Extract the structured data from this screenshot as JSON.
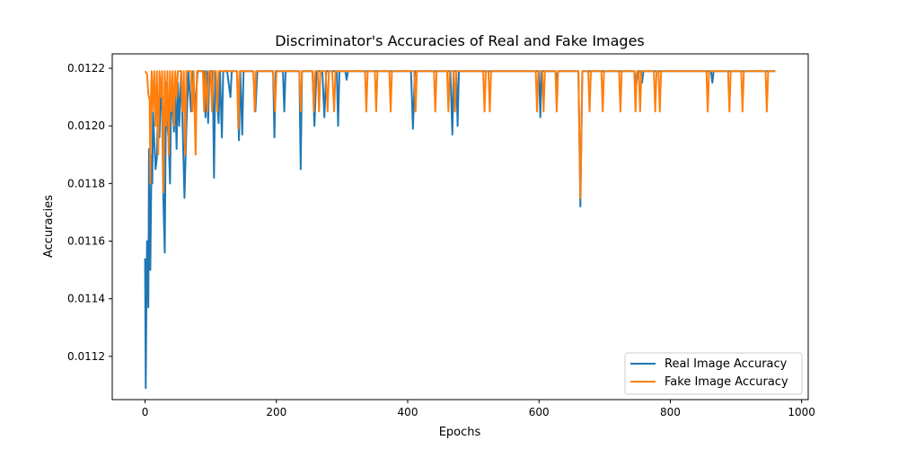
{
  "chart_data": {
    "type": "line",
    "title": "Discriminator's Accuracies of Real and Fake Images",
    "xlabel": "Epochs",
    "ylabel": "Accuracies",
    "xlim": [
      -50,
      1010
    ],
    "ylim": [
      0.01105,
      0.01225
    ],
    "xticks": [
      0,
      200,
      400,
      600,
      800,
      1000
    ],
    "yticks": [
      0.0112,
      0.0114,
      0.0116,
      0.0118,
      0.012,
      0.0122
    ],
    "ytick_labels": [
      "0.0112",
      "0.0114",
      "0.0116",
      "0.0118",
      "0.0120",
      "0.0122"
    ],
    "legend_position": "lower-right",
    "grid": false,
    "series": [
      {
        "name": "Real Image Accuracy",
        "color": "#1f77b4",
        "points": [
          [
            0,
            0.01154
          ],
          [
            1,
            0.01109
          ],
          [
            2,
            0.01138
          ],
          [
            3,
            0.0116
          ],
          [
            4,
            0.0115
          ],
          [
            5,
            0.01137
          ],
          [
            6,
            0.01192
          ],
          [
            7,
            0.0116
          ],
          [
            8,
            0.0115
          ],
          [
            9,
            0.01172
          ],
          [
            10,
            0.0119
          ],
          [
            11,
            0.0118
          ],
          [
            12,
            0.01205
          ],
          [
            14,
            0.01195
          ],
          [
            16,
            0.01185
          ],
          [
            18,
            0.01189
          ],
          [
            20,
            0.0121
          ],
          [
            22,
            0.01196
          ],
          [
            24,
            0.01215
          ],
          [
            26,
            0.01205
          ],
          [
            28,
            0.01173
          ],
          [
            30,
            0.01156
          ],
          [
            32,
            0.01215
          ],
          [
            34,
            0.012
          ],
          [
            36,
            0.01195
          ],
          [
            38,
            0.0118
          ],
          [
            40,
            0.01215
          ],
          [
            42,
            0.01205
          ],
          [
            44,
            0.01198
          ],
          [
            46,
            0.01212
          ],
          [
            48,
            0.01192
          ],
          [
            50,
            0.01215
          ],
          [
            52,
            0.012
          ],
          [
            55,
            0.01219
          ],
          [
            58,
            0.01193
          ],
          [
            60,
            0.01175
          ],
          [
            63,
            0.012
          ],
          [
            66,
            0.01219
          ],
          [
            70,
            0.01205
          ],
          [
            73,
            0.01219
          ],
          [
            76,
            0.01205
          ],
          [
            80,
            0.01219
          ],
          [
            85,
            0.01219
          ],
          [
            90,
            0.01219
          ],
          [
            92,
            0.01203
          ],
          [
            94,
            0.01219
          ],
          [
            96,
            0.01201
          ],
          [
            98,
            0.01219
          ],
          [
            103,
            0.01219
          ],
          [
            105,
            0.01182
          ],
          [
            107,
            0.01219
          ],
          [
            112,
            0.01201
          ],
          [
            114,
            0.01219
          ],
          [
            117,
            0.01196
          ],
          [
            119,
            0.01219
          ],
          [
            125,
            0.01219
          ],
          [
            130,
            0.0121
          ],
          [
            132,
            0.01219
          ],
          [
            140,
            0.01219
          ],
          [
            143,
            0.01195
          ],
          [
            145,
            0.01219
          ],
          [
            148,
            0.01197
          ],
          [
            150,
            0.01219
          ],
          [
            165,
            0.01219
          ],
          [
            168,
            0.01205
          ],
          [
            171,
            0.01219
          ],
          [
            195,
            0.01219
          ],
          [
            197,
            0.01196
          ],
          [
            199,
            0.01219
          ],
          [
            210,
            0.01219
          ],
          [
            212,
            0.01205
          ],
          [
            214,
            0.01219
          ],
          [
            235,
            0.01219
          ],
          [
            237,
            0.01185
          ],
          [
            239,
            0.01219
          ],
          [
            255,
            0.01219
          ],
          [
            258,
            0.012
          ],
          [
            261,
            0.01219
          ],
          [
            270,
            0.01219
          ],
          [
            273,
            0.01203
          ],
          [
            276,
            0.01219
          ],
          [
            292,
            0.01219
          ],
          [
            294,
            0.012
          ],
          [
            296,
            0.01219
          ],
          [
            305,
            0.01219
          ],
          [
            307,
            0.01216
          ],
          [
            309,
            0.01219
          ],
          [
            405,
            0.01219
          ],
          [
            408,
            0.01199
          ],
          [
            411,
            0.01219
          ],
          [
            465,
            0.01219
          ],
          [
            468,
            0.01197
          ],
          [
            470,
            0.01219
          ],
          [
            474,
            0.01219
          ],
          [
            476,
            0.012
          ],
          [
            478,
            0.01219
          ],
          [
            600,
            0.01219
          ],
          [
            602,
            0.01203
          ],
          [
            604,
            0.01219
          ],
          [
            625,
            0.01219
          ],
          [
            627,
            0.01216
          ],
          [
            629,
            0.01219
          ],
          [
            660,
            0.01219
          ],
          [
            663,
            0.01172
          ],
          [
            666,
            0.01219
          ],
          [
            745,
            0.01219
          ],
          [
            748,
            0.01214
          ],
          [
            751,
            0.01219
          ],
          [
            755,
            0.01219
          ],
          [
            757,
            0.01215
          ],
          [
            759,
            0.01219
          ],
          [
            862,
            0.01219
          ],
          [
            864,
            0.01215
          ],
          [
            866,
            0.01219
          ],
          [
            960,
            0.01219
          ]
        ]
      },
      {
        "name": "Fake Image Accuracy",
        "color": "#ff7f0e",
        "points": [
          [
            0,
            0.01219
          ],
          [
            3,
            0.01218
          ],
          [
            5,
            0.01211
          ],
          [
            7,
            0.01209
          ],
          [
            8,
            0.0118
          ],
          [
            9,
            0.0121
          ],
          [
            10,
            0.01219
          ],
          [
            12,
            0.01205
          ],
          [
            14,
            0.01219
          ],
          [
            16,
            0.012
          ],
          [
            18,
            0.01219
          ],
          [
            20,
            0.0119
          ],
          [
            22,
            0.01219
          ],
          [
            24,
            0.0121
          ],
          [
            26,
            0.01219
          ],
          [
            28,
            0.01177
          ],
          [
            30,
            0.01219
          ],
          [
            32,
            0.012
          ],
          [
            34,
            0.01219
          ],
          [
            36,
            0.0119
          ],
          [
            38,
            0.01219
          ],
          [
            40,
            0.01205
          ],
          [
            42,
            0.01219
          ],
          [
            44,
            0.012
          ],
          [
            46,
            0.01219
          ],
          [
            48,
            0.0121
          ],
          [
            50,
            0.01219
          ],
          [
            55,
            0.01219
          ],
          [
            57,
            0.01205
          ],
          [
            59,
            0.01219
          ],
          [
            61,
            0.0119
          ],
          [
            63,
            0.01219
          ],
          [
            70,
            0.01219
          ],
          [
            72,
            0.01205
          ],
          [
            74,
            0.01219
          ],
          [
            77,
            0.0119
          ],
          [
            79,
            0.01219
          ],
          [
            88,
            0.01219
          ],
          [
            90,
            0.01205
          ],
          [
            92,
            0.01219
          ],
          [
            95,
            0.01205
          ],
          [
            97,
            0.01219
          ],
          [
            100,
            0.01219
          ],
          [
            102,
            0.01205
          ],
          [
            104,
            0.01219
          ],
          [
            108,
            0.01219
          ],
          [
            110,
            0.01205
          ],
          [
            112,
            0.01219
          ],
          [
            140,
            0.01219
          ],
          [
            142,
            0.01199
          ],
          [
            144,
            0.01219
          ],
          [
            165,
            0.01219
          ],
          [
            167,
            0.01205
          ],
          [
            169,
            0.01219
          ],
          [
            195,
            0.01219
          ],
          [
            198,
            0.01205
          ],
          [
            200,
            0.01219
          ],
          [
            235,
            0.01219
          ],
          [
            237,
            0.01205
          ],
          [
            239,
            0.01219
          ],
          [
            255,
            0.01219
          ],
          [
            257,
            0.01205
          ],
          [
            259,
            0.01219
          ],
          [
            263,
            0.01219
          ],
          [
            265,
            0.01205
          ],
          [
            267,
            0.01219
          ],
          [
            275,
            0.01219
          ],
          [
            278,
            0.01205
          ],
          [
            280,
            0.01219
          ],
          [
            285,
            0.01219
          ],
          [
            288,
            0.01205
          ],
          [
            290,
            0.01219
          ],
          [
            335,
            0.01219
          ],
          [
            337,
            0.01205
          ],
          [
            339,
            0.01219
          ],
          [
            350,
            0.01219
          ],
          [
            352,
            0.01205
          ],
          [
            354,
            0.01219
          ],
          [
            372,
            0.01219
          ],
          [
            374,
            0.01205
          ],
          [
            376,
            0.01219
          ],
          [
            410,
            0.01219
          ],
          [
            412,
            0.01205
          ],
          [
            414,
            0.01219
          ],
          [
            440,
            0.01219
          ],
          [
            442,
            0.01205
          ],
          [
            444,
            0.01219
          ],
          [
            460,
            0.01219
          ],
          [
            462,
            0.01205
          ],
          [
            464,
            0.01219
          ],
          [
            470,
            0.01219
          ],
          [
            472,
            0.01205
          ],
          [
            474,
            0.01219
          ],
          [
            515,
            0.01219
          ],
          [
            517,
            0.01205
          ],
          [
            519,
            0.01219
          ],
          [
            523,
            0.01219
          ],
          [
            525,
            0.01205
          ],
          [
            527,
            0.01219
          ],
          [
            595,
            0.01219
          ],
          [
            597,
            0.01205
          ],
          [
            599,
            0.01219
          ],
          [
            605,
            0.01219
          ],
          [
            607,
            0.01205
          ],
          [
            609,
            0.01219
          ],
          [
            625,
            0.01219
          ],
          [
            627,
            0.01205
          ],
          [
            629,
            0.01219
          ],
          [
            660,
            0.01219
          ],
          [
            663,
            0.01175
          ],
          [
            666,
            0.01219
          ],
          [
            675,
            0.01219
          ],
          [
            677,
            0.01205
          ],
          [
            679,
            0.01219
          ],
          [
            695,
            0.01219
          ],
          [
            697,
            0.01205
          ],
          [
            699,
            0.01219
          ],
          [
            722,
            0.01219
          ],
          [
            724,
            0.01205
          ],
          [
            726,
            0.01219
          ],
          [
            745,
            0.01219
          ],
          [
            747,
            0.01205
          ],
          [
            749,
            0.01219
          ],
          [
            752,
            0.01219
          ],
          [
            754,
            0.01205
          ],
          [
            756,
            0.01219
          ],
          [
            775,
            0.01219
          ],
          [
            777,
            0.01205
          ],
          [
            779,
            0.01219
          ],
          [
            782,
            0.01219
          ],
          [
            784,
            0.01205
          ],
          [
            786,
            0.01219
          ],
          [
            855,
            0.01219
          ],
          [
            857,
            0.01205
          ],
          [
            859,
            0.01219
          ],
          [
            888,
            0.01219
          ],
          [
            890,
            0.01205
          ],
          [
            892,
            0.01219
          ],
          [
            908,
            0.01219
          ],
          [
            910,
            0.01205
          ],
          [
            912,
            0.01219
          ],
          [
            945,
            0.01219
          ],
          [
            947,
            0.01205
          ],
          [
            949,
            0.01219
          ],
          [
            960,
            0.01219
          ]
        ]
      }
    ]
  }
}
